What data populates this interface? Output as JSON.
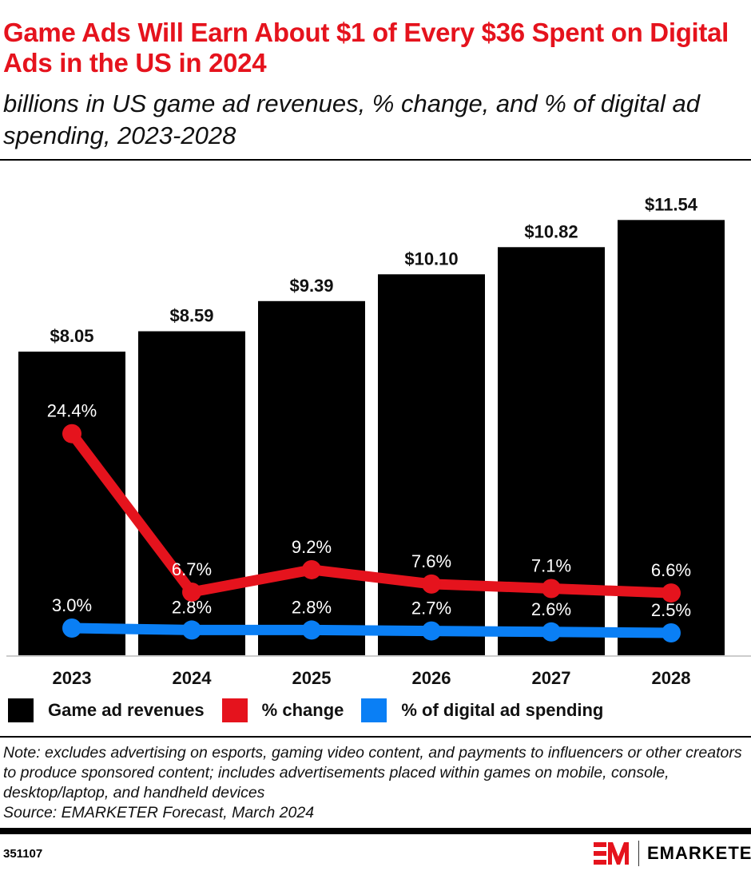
{
  "title": "Game Ads Will Earn About $1 of Every $36 Spent on Digital Ads in the US in 2024",
  "subtitle": "billions in US game ad revenues, % change, and % of digital ad spending, 2023-2028",
  "note": "Note: excludes advertising on esports, gaming video content, and payments to influencers or other creators to produce sponsored content; includes advertisements placed within games on mobile, console, desktop/laptop, and handheld devices",
  "source": "Source: EMARKETER Forecast, March 2024",
  "chart_id": "351107",
  "brand": "EMARKETER",
  "colors": {
    "title": "#e5131d",
    "bars": "#000000",
    "change": "#e5131d",
    "share": "#0a7ff5"
  },
  "chart_data": {
    "type": "bar",
    "categories": [
      "2023",
      "2024",
      "2025",
      "2026",
      "2027",
      "2028"
    ],
    "series": [
      {
        "name": "Game ad revenues",
        "type": "bar",
        "values": [
          8.05,
          8.59,
          9.39,
          10.1,
          10.82,
          11.54
        ],
        "labels": [
          "$8.05",
          "$8.59",
          "$9.39",
          "$10.10",
          "$10.82",
          "$11.54"
        ]
      },
      {
        "name": "% change",
        "type": "line",
        "values": [
          24.4,
          6.7,
          9.2,
          7.6,
          7.1,
          6.6
        ],
        "labels": [
          "24.4%",
          "6.7%",
          "9.2%",
          "7.6%",
          "7.1%",
          "6.6%"
        ]
      },
      {
        "name": "% of digital ad spending",
        "type": "line",
        "values": [
          3.0,
          2.8,
          2.8,
          2.7,
          2.6,
          2.5
        ],
        "labels": [
          "3.0%",
          "2.8%",
          "2.8%",
          "2.7%",
          "2.6%",
          "2.5%"
        ]
      }
    ],
    "legend": "bottom-left",
    "grid": false
  }
}
